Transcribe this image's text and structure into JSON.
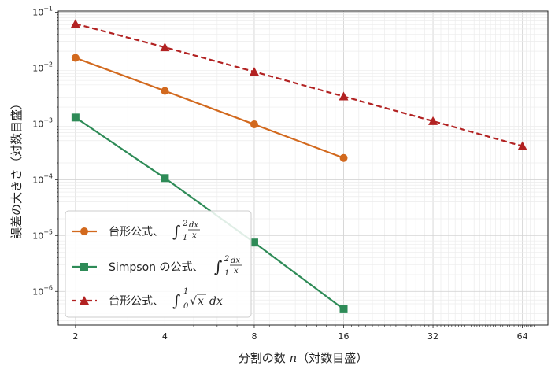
{
  "chart_data": {
    "type": "line",
    "xlabel_parts": {
      "prefix": "分割の数 ",
      "var": "n",
      "suffix": "（対数目盛）"
    },
    "ylabel": "誤差の大きさ（対数目盛）",
    "x_scale": "log2",
    "y_scale": "log10",
    "xlim": [
      1.75,
      78
    ],
    "ylim": [
      2.5e-07,
      0.105
    ],
    "x_ticks": [
      2,
      4,
      8,
      16,
      32,
      64
    ],
    "x_tick_labels": [
      "2",
      "4",
      "8",
      "16",
      "32",
      "64"
    ],
    "y_ticks": [
      1e-06,
      1e-05,
      0.0001,
      0.001,
      0.01,
      0.1
    ],
    "y_tick_labels": [
      {
        "base": "10",
        "exp": "−6"
      },
      {
        "base": "10",
        "exp": "−5"
      },
      {
        "base": "10",
        "exp": "−4"
      },
      {
        "base": "10",
        "exp": "−3"
      },
      {
        "base": "10",
        "exp": "−2"
      },
      {
        "base": "10",
        "exp": "−1"
      }
    ],
    "grid": true,
    "legend_position": "bottom-left",
    "series": [
      {
        "label_prefix": "台形公式、",
        "color": "#d2691e",
        "marker": "circle",
        "dash": "solid",
        "x": [
          2,
          4,
          8,
          16
        ],
        "y": [
          0.0152,
          0.0039,
          0.00098,
          0.000245
        ]
      },
      {
        "label_prefix": "Simpson の公式、",
        "color": "#2e8b57",
        "marker": "square",
        "dash": "solid",
        "x": [
          2,
          4,
          8,
          16
        ],
        "y": [
          0.0013,
          0.000107,
          7.5e-06,
          4.8e-07
        ]
      },
      {
        "label_prefix": "台形公式、",
        "color": "#b22222",
        "marker": "triangle",
        "dash": "dashed",
        "x": [
          2,
          4,
          8,
          16,
          32,
          64
        ],
        "y": [
          0.062,
          0.0235,
          0.0086,
          0.0031,
          0.00112,
          0.0004
        ]
      }
    ]
  }
}
